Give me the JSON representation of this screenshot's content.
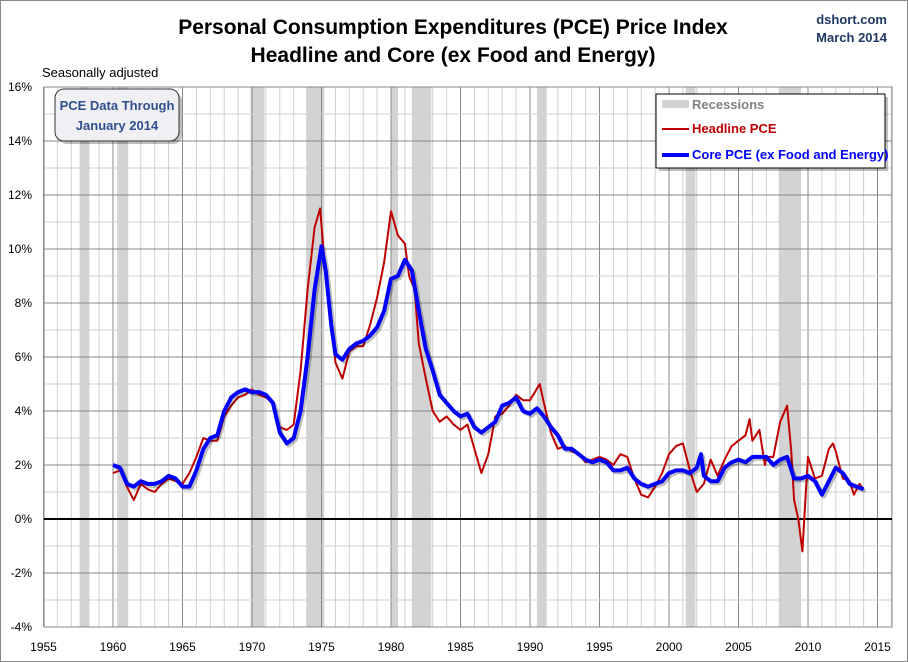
{
  "chart_data": {
    "type": "line",
    "title": "Personal Consumption Expenditures (PCE) Price Index",
    "subtitle": "Headline and Core (ex Food and Energy)",
    "source": "dshort.com",
    "date": "March 2014",
    "note": "Seasonally adjusted",
    "annotation": [
      "PCE Data Through",
      "January 2014"
    ],
    "xlim": [
      1955,
      2016
    ],
    "ylim": [
      -4,
      16
    ],
    "x_ticks": [
      1955,
      1960,
      1965,
      1970,
      1975,
      1980,
      1985,
      1990,
      1995,
      2000,
      2005,
      2010,
      2015
    ],
    "y_ticks": [
      -4,
      -2,
      0,
      2,
      4,
      6,
      8,
      10,
      12,
      14,
      16
    ],
    "y_tick_labels": [
      "-4%",
      "-2%",
      "0%",
      "2%",
      "4%",
      "6%",
      "8%",
      "10%",
      "12%",
      "14%",
      "16%"
    ],
    "grid": true,
    "legend_placement": "top-right",
    "legend": {
      "recessions": "Recessions"
    },
    "recessions": [
      [
        1957.6,
        1958.3
      ],
      [
        1960.3,
        1961.1
      ],
      [
        1969.9,
        1970.9
      ],
      [
        1973.9,
        1975.2
      ],
      [
        1980.0,
        1980.5
      ],
      [
        1981.5,
        1982.9
      ],
      [
        1990.5,
        1991.2
      ],
      [
        2001.2,
        2001.9
      ],
      [
        2007.9,
        2009.5
      ]
    ],
    "colors": {
      "headline": "#c00000",
      "core": "#0000ff",
      "recession": "#d3d3d3",
      "title": "#000000",
      "source": "#1f3864",
      "annotation": "#2f4f8f"
    },
    "series": [
      {
        "name": "Headline PCE",
        "key": "headline",
        "points": [
          [
            1960.0,
            1.7
          ],
          [
            1960.5,
            1.8
          ],
          [
            1961,
            1.2
          ],
          [
            1961.5,
            0.7
          ],
          [
            1962,
            1.3
          ],
          [
            1962.5,
            1.1
          ],
          [
            1963,
            1.0
          ],
          [
            1963.5,
            1.3
          ],
          [
            1964,
            1.5
          ],
          [
            1964.5,
            1.4
          ],
          [
            1965,
            1.3
          ],
          [
            1965.5,
            1.7
          ],
          [
            1966,
            2.3
          ],
          [
            1966.5,
            3.0
          ],
          [
            1967,
            2.9
          ],
          [
            1967.5,
            2.9
          ],
          [
            1968,
            3.8
          ],
          [
            1968.5,
            4.2
          ],
          [
            1969,
            4.5
          ],
          [
            1969.5,
            4.6
          ],
          [
            1970,
            4.8
          ],
          [
            1970.5,
            4.6
          ],
          [
            1971,
            4.5
          ],
          [
            1971.5,
            4.3
          ],
          [
            1972,
            3.4
          ],
          [
            1972.5,
            3.3
          ],
          [
            1973,
            3.5
          ],
          [
            1973.5,
            5.5
          ],
          [
            1974,
            8.5
          ],
          [
            1974.5,
            10.8
          ],
          [
            1974.9,
            11.5
          ],
          [
            1975.3,
            9.0
          ],
          [
            1975.7,
            7.5
          ],
          [
            1976,
            5.8
          ],
          [
            1976.5,
            5.2
          ],
          [
            1977,
            6.2
          ],
          [
            1977.5,
            6.4
          ],
          [
            1978,
            6.4
          ],
          [
            1978.5,
            7.2
          ],
          [
            1979,
            8.2
          ],
          [
            1979.5,
            9.5
          ],
          [
            1980,
            11.4
          ],
          [
            1980.5,
            10.5
          ],
          [
            1981,
            10.2
          ],
          [
            1981.3,
            9.0
          ],
          [
            1981.7,
            8.5
          ],
          [
            1982,
            6.5
          ],
          [
            1982.5,
            5.2
          ],
          [
            1983,
            4.0
          ],
          [
            1983.5,
            3.6
          ],
          [
            1984,
            3.8
          ],
          [
            1984.5,
            3.5
          ],
          [
            1985,
            3.3
          ],
          [
            1985.5,
            3.5
          ],
          [
            1986,
            2.6
          ],
          [
            1986.5,
            1.7
          ],
          [
            1987,
            2.4
          ],
          [
            1987.5,
            3.8
          ],
          [
            1988,
            3.9
          ],
          [
            1988.5,
            4.2
          ],
          [
            1989,
            4.6
          ],
          [
            1989.5,
            4.4
          ],
          [
            1990,
            4.4
          ],
          [
            1990.7,
            5.0
          ],
          [
            1991,
            4.3
          ],
          [
            1991.5,
            3.2
          ],
          [
            1992,
            2.6
          ],
          [
            1992.5,
            2.7
          ],
          [
            1993,
            2.5
          ],
          [
            1993.5,
            2.4
          ],
          [
            1994,
            2.1
          ],
          [
            1994.5,
            2.2
          ],
          [
            1995,
            2.3
          ],
          [
            1995.5,
            2.2
          ],
          [
            1996,
            2.0
          ],
          [
            1996.5,
            2.4
          ],
          [
            1997,
            2.3
          ],
          [
            1997.5,
            1.5
          ],
          [
            1998,
            0.9
          ],
          [
            1998.5,
            0.8
          ],
          [
            1999,
            1.2
          ],
          [
            1999.5,
            1.7
          ],
          [
            2000,
            2.4
          ],
          [
            2000.5,
            2.7
          ],
          [
            2001,
            2.8
          ],
          [
            2001.5,
            1.8
          ],
          [
            2002,
            1.0
          ],
          [
            2002.5,
            1.3
          ],
          [
            2003,
            2.2
          ],
          [
            2003.5,
            1.6
          ],
          [
            2004,
            2.2
          ],
          [
            2004.5,
            2.7
          ],
          [
            2005,
            2.9
          ],
          [
            2005.5,
            3.1
          ],
          [
            2005.8,
            3.7
          ],
          [
            2006,
            2.9
          ],
          [
            2006.5,
            3.3
          ],
          [
            2006.9,
            2.0
          ],
          [
            2007,
            2.3
          ],
          [
            2007.5,
            2.3
          ],
          [
            2008,
            3.6
          ],
          [
            2008.5,
            4.2
          ],
          [
            2008.8,
            2.5
          ],
          [
            2009.0,
            0.7
          ],
          [
            2009.3,
            0.0
          ],
          [
            2009.6,
            -1.2
          ],
          [
            2009.9,
            1.5
          ],
          [
            2010,
            2.3
          ],
          [
            2010.5,
            1.5
          ],
          [
            2011,
            1.6
          ],
          [
            2011.5,
            2.6
          ],
          [
            2011.8,
            2.8
          ],
          [
            2012,
            2.5
          ],
          [
            2012.5,
            1.5
          ],
          [
            2013,
            1.4
          ],
          [
            2013.3,
            0.9
          ],
          [
            2013.7,
            1.3
          ],
          [
            2014.0,
            1.1
          ]
        ]
      },
      {
        "name": "Core PCE (ex Food and Energy)",
        "key": "core",
        "points": [
          [
            1960,
            2.0
          ],
          [
            1960.5,
            1.9
          ],
          [
            1961,
            1.3
          ],
          [
            1961.5,
            1.2
          ],
          [
            1962,
            1.4
          ],
          [
            1962.5,
            1.3
          ],
          [
            1963,
            1.3
          ],
          [
            1963.5,
            1.4
          ],
          [
            1964,
            1.6
          ],
          [
            1964.5,
            1.5
          ],
          [
            1965,
            1.2
          ],
          [
            1965.5,
            1.2
          ],
          [
            1966,
            1.8
          ],
          [
            1966.5,
            2.6
          ],
          [
            1967,
            3.0
          ],
          [
            1967.5,
            3.1
          ],
          [
            1968,
            4.0
          ],
          [
            1968.5,
            4.5
          ],
          [
            1969,
            4.7
          ],
          [
            1969.5,
            4.8
          ],
          [
            1970,
            4.7
          ],
          [
            1970.5,
            4.7
          ],
          [
            1971,
            4.6
          ],
          [
            1971.5,
            4.3
          ],
          [
            1972,
            3.2
          ],
          [
            1972.5,
            2.8
          ],
          [
            1973,
            3.0
          ],
          [
            1973.5,
            4.0
          ],
          [
            1974,
            6.0
          ],
          [
            1974.5,
            8.5
          ],
          [
            1975,
            10.1
          ],
          [
            1975.3,
            9.2
          ],
          [
            1975.7,
            7.2
          ],
          [
            1976,
            6.1
          ],
          [
            1976.5,
            5.9
          ],
          [
            1977,
            6.3
          ],
          [
            1977.5,
            6.5
          ],
          [
            1978,
            6.6
          ],
          [
            1978.5,
            6.8
          ],
          [
            1979,
            7.1
          ],
          [
            1979.5,
            7.7
          ],
          [
            1980,
            8.9
          ],
          [
            1980.5,
            9.0
          ],
          [
            1981,
            9.6
          ],
          [
            1981.5,
            9.2
          ],
          [
            1982,
            7.7
          ],
          [
            1982.5,
            6.3
          ],
          [
            1983,
            5.5
          ],
          [
            1983.5,
            4.6
          ],
          [
            1984,
            4.3
          ],
          [
            1984.5,
            4.0
          ],
          [
            1985,
            3.8
          ],
          [
            1985.5,
            3.9
          ],
          [
            1986,
            3.4
          ],
          [
            1986.5,
            3.2
          ],
          [
            1987,
            3.4
          ],
          [
            1987.5,
            3.6
          ],
          [
            1988,
            4.2
          ],
          [
            1988.5,
            4.3
          ],
          [
            1989,
            4.5
          ],
          [
            1989.5,
            4.0
          ],
          [
            1990,
            3.9
          ],
          [
            1990.5,
            4.1
          ],
          [
            1991,
            3.8
          ],
          [
            1991.5,
            3.4
          ],
          [
            1992,
            3.1
          ],
          [
            1992.5,
            2.6
          ],
          [
            1993,
            2.6
          ],
          [
            1993.5,
            2.4
          ],
          [
            1994,
            2.2
          ],
          [
            1994.5,
            2.1
          ],
          [
            1995,
            2.2
          ],
          [
            1995.5,
            2.1
          ],
          [
            1996,
            1.8
          ],
          [
            1996.5,
            1.8
          ],
          [
            1997,
            1.9
          ],
          [
            1997.5,
            1.5
          ],
          [
            1998,
            1.3
          ],
          [
            1998.5,
            1.2
          ],
          [
            1999,
            1.3
          ],
          [
            1999.5,
            1.4
          ],
          [
            2000,
            1.7
          ],
          [
            2000.5,
            1.8
          ],
          [
            2001,
            1.8
          ],
          [
            2001.5,
            1.7
          ],
          [
            2002,
            1.9
          ],
          [
            2002.3,
            2.4
          ],
          [
            2002.5,
            1.6
          ],
          [
            2003,
            1.4
          ],
          [
            2003.5,
            1.4
          ],
          [
            2004,
            1.9
          ],
          [
            2004.5,
            2.1
          ],
          [
            2005,
            2.2
          ],
          [
            2005.5,
            2.1
          ],
          [
            2006,
            2.3
          ],
          [
            2006.5,
            2.3
          ],
          [
            2007,
            2.3
          ],
          [
            2007.5,
            2.0
          ],
          [
            2008,
            2.2
          ],
          [
            2008.5,
            2.3
          ],
          [
            2009,
            1.5
          ],
          [
            2009.5,
            1.5
          ],
          [
            2010,
            1.6
          ],
          [
            2010.5,
            1.4
          ],
          [
            2011,
            0.9
          ],
          [
            2011.5,
            1.4
          ],
          [
            2012,
            1.9
          ],
          [
            2012.5,
            1.7
          ],
          [
            2013,
            1.3
          ],
          [
            2013.5,
            1.2
          ],
          [
            2014,
            1.1
          ]
        ]
      }
    ]
  }
}
